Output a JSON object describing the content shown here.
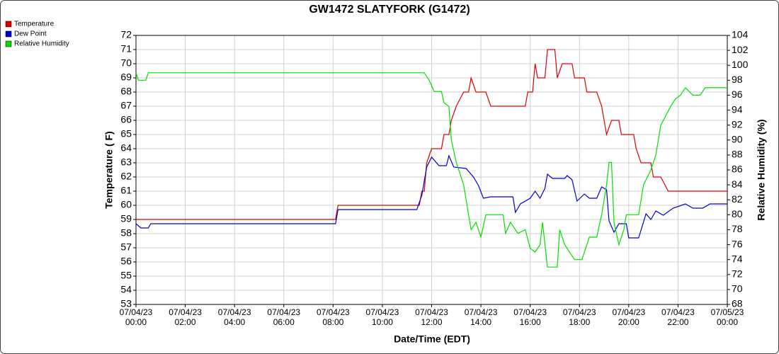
{
  "chart_data": {
    "type": "line",
    "title": "GW1472 SLATYFORK (G1472)",
    "xlabel": "Date/Time (EDT)",
    "ylabel": "Temperature ( F)",
    "y2label": "Relative Humidity (%)",
    "xlim": [
      "07/04/23 00:00",
      "07/05/23 00:00"
    ],
    "xticks": [
      "07/04/23 00:00",
      "07/04/23 02:00",
      "07/04/23 04:00",
      "07/04/23 06:00",
      "07/04/23 08:00",
      "07/04/23 10:00",
      "07/04/23 12:00",
      "07/04/23 14:00",
      "07/04/23 16:00",
      "07/04/23 18:00",
      "07/04/23 20:00",
      "07/04/23 22:00",
      "07/05/23 00:00"
    ],
    "ylim": [
      53,
      72
    ],
    "yticks": [
      53,
      54,
      55,
      56,
      57,
      58,
      59,
      60,
      61,
      62,
      63,
      64,
      65,
      66,
      67,
      68,
      69,
      70,
      71,
      72
    ],
    "y2lim": [
      68,
      104
    ],
    "y2ticks": [
      68,
      70,
      72,
      74,
      76,
      78,
      80,
      82,
      84,
      86,
      88,
      90,
      92,
      94,
      96,
      98,
      100,
      102,
      104
    ],
    "grid": true,
    "legend": "top-left",
    "series": [
      {
        "name": "Temperature",
        "color": "#e00000",
        "x": [
          "07/04/23 00:00",
          "07/04/23 08:06",
          "07/04/23 08:12",
          "07/04/23 11:30",
          "07/04/23 11:36",
          "07/04/23 11:42",
          "07/04/23 11:48",
          "07/04/23 12:00",
          "07/04/23 12:24",
          "07/04/23 12:30",
          "07/04/23 12:42",
          "07/04/23 12:48",
          "07/04/23 13:00",
          "07/04/23 13:18",
          "07/04/23 13:30",
          "07/04/23 13:36",
          "07/04/23 13:48",
          "07/04/23 14:12",
          "07/04/23 14:24",
          "07/04/23 15:48",
          "07/04/23 15:54",
          "07/04/23 16:06",
          "07/04/23 16:12",
          "07/04/23 16:18",
          "07/04/23 16:36",
          "07/04/23 16:42",
          "07/04/23 17:00",
          "07/04/23 17:06",
          "07/04/23 17:18",
          "07/04/23 17:42",
          "07/04/23 17:48",
          "07/04/23 18:12",
          "07/04/23 18:18",
          "07/04/23 18:42",
          "07/04/23 18:54",
          "07/04/23 19:06",
          "07/04/23 19:18",
          "07/04/23 19:36",
          "07/04/23 19:42",
          "07/04/23 20:12",
          "07/04/23 20:18",
          "07/04/23 20:30",
          "07/04/23 20:54",
          "07/04/23 21:00",
          "07/04/23 21:18",
          "07/04/23 21:36",
          "07/05/23 00:00"
        ],
        "values": [
          59,
          59,
          60,
          60,
          61,
          61,
          63,
          64,
          64,
          65,
          65,
          66,
          67,
          68,
          68,
          69,
          68,
          68,
          67,
          67,
          68,
          68,
          70,
          69,
          69,
          71,
          71,
          69,
          70,
          70,
          69,
          69,
          68,
          68,
          67,
          65,
          66,
          66,
          65,
          65,
          64,
          63,
          63,
          62,
          62,
          61,
          61
        ]
      },
      {
        "name": "Dew Point",
        "color": "#0000d0",
        "x": [
          "07/04/23 00:00",
          "07/04/23 00:12",
          "07/04/23 00:30",
          "07/04/23 00:36",
          "07/04/23 08:06",
          "07/04/23 08:12",
          "07/04/23 11:24",
          "07/04/23 11:36",
          "07/04/23 11:48",
          "07/04/23 12:00",
          "07/04/23 12:18",
          "07/04/23 12:36",
          "07/04/23 12:42",
          "07/04/23 12:54",
          "07/04/23 13:24",
          "07/04/23 13:42",
          "07/04/23 13:54",
          "07/04/23 14:06",
          "07/04/23 14:24",
          "07/04/23 15:18",
          "07/04/23 15:24",
          "07/04/23 15:36",
          "07/04/23 16:00",
          "07/04/23 16:12",
          "07/04/23 16:24",
          "07/04/23 16:36",
          "07/04/23 16:42",
          "07/04/23 16:54",
          "07/04/23 17:24",
          "07/04/23 17:30",
          "07/04/23 17:42",
          "07/04/23 17:54",
          "07/04/23 18:12",
          "07/04/23 18:24",
          "07/04/23 18:42",
          "07/04/23 18:54",
          "07/04/23 19:06",
          "07/04/23 19:12",
          "07/04/23 19:24",
          "07/04/23 19:36",
          "07/04/23 19:54",
          "07/04/23 20:00",
          "07/04/23 20:24",
          "07/04/23 20:42",
          "07/04/23 20:54",
          "07/04/23 21:06",
          "07/04/23 21:24",
          "07/04/23 21:48",
          "07/04/23 22:18",
          "07/04/23 22:36",
          "07/04/23 23:00",
          "07/04/23 23:18",
          "07/05/23 00:00"
        ],
        "values": [
          58.7,
          58.4,
          58.4,
          58.7,
          58.7,
          59.7,
          59.7,
          60.7,
          62.7,
          63.4,
          62.8,
          62.8,
          63.5,
          62.7,
          62.6,
          62,
          61.4,
          60.5,
          60.6,
          60.6,
          59.5,
          60.1,
          60.5,
          61,
          60.5,
          61.2,
          62.2,
          61.9,
          61.9,
          62.1,
          61.8,
          60.3,
          60.8,
          60.5,
          60.5,
          61.3,
          61.1,
          58.9,
          58.1,
          58.7,
          58.7,
          57.7,
          57.7,
          59.4,
          59,
          59.6,
          59.3,
          59.8,
          60.1,
          59.8,
          59.8,
          60.1,
          60.1
        ]
      },
      {
        "name": "Relative Humidity",
        "color": "#00e000",
        "axis": "y2",
        "x": [
          "07/04/23 00:00",
          "07/04/23 00:06",
          "07/04/23 00:24",
          "07/04/23 00:30",
          "07/04/23 11:42",
          "07/04/23 11:54",
          "07/04/23 12:06",
          "07/04/23 12:24",
          "07/04/23 12:30",
          "07/04/23 12:42",
          "07/04/23 12:48",
          "07/04/23 13:00",
          "07/04/23 13:18",
          "07/04/23 13:24",
          "07/04/23 13:36",
          "07/04/23 13:48",
          "07/04/23 14:00",
          "07/04/23 14:12",
          "07/04/23 14:54",
          "07/04/23 15:00",
          "07/04/23 15:12",
          "07/04/23 15:30",
          "07/04/23 15:48",
          "07/04/23 16:00",
          "07/04/23 16:12",
          "07/04/23 16:24",
          "07/04/23 16:30",
          "07/04/23 16:42",
          "07/04/23 17:06",
          "07/04/23 17:12",
          "07/04/23 17:24",
          "07/04/23 17:36",
          "07/04/23 17:48",
          "07/04/23 18:06",
          "07/04/23 18:12",
          "07/04/23 18:24",
          "07/04/23 18:42",
          "07/04/23 18:54",
          "07/04/23 19:06",
          "07/04/23 19:12",
          "07/04/23 19:18",
          "07/04/23 19:24",
          "07/04/23 19:36",
          "07/04/23 19:48",
          "07/04/23 19:54",
          "07/04/23 20:24",
          "07/04/23 20:36",
          "07/04/23 20:54",
          "07/04/23 21:06",
          "07/04/23 21:18",
          "07/04/23 21:42",
          "07/04/23 21:54",
          "07/04/23 22:06",
          "07/04/23 22:18",
          "07/04/23 22:36",
          "07/04/23 22:54",
          "07/04/23 23:06",
          "07/05/23 00:00"
        ],
        "values": [
          99,
          98,
          98,
          99,
          99,
          98,
          96.5,
          96.5,
          95,
          94.5,
          90,
          87,
          84,
          82,
          78,
          79,
          77,
          80,
          80,
          77.5,
          79,
          77.5,
          78,
          75.5,
          75,
          76,
          79,
          73,
          73,
          78,
          76,
          75,
          74,
          74,
          75,
          77,
          77,
          80,
          84,
          87,
          87,
          79,
          76,
          78,
          80,
          80,
          84,
          86,
          88,
          92,
          94.5,
          95.5,
          96,
          97,
          96,
          96,
          97,
          97
        ]
      }
    ]
  }
}
